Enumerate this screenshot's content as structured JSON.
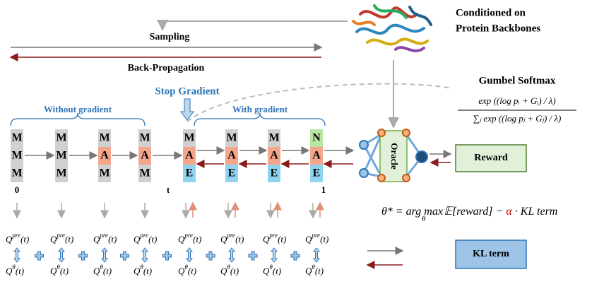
{
  "condition": {
    "line1": "Conditioned on",
    "line2": "Protein Backbones"
  },
  "sampling": "Sampling",
  "backprop": "Back-Propagation",
  "gumbel": {
    "title": "Gumbel Softmax",
    "numerator": "exp ((log pᵢ + Gᵢ) / λ)",
    "denominator": "∑ⱼ exp ((log pⱼ + Gⱼ) / λ)"
  },
  "stop_gradient": "Stop Gradient",
  "without_gradient": "Without gradient",
  "with_gradient": "With gradient",
  "columns": [
    [
      "M",
      "M",
      "M"
    ],
    [
      "M",
      "M",
      "M"
    ],
    [
      "M",
      "A",
      "M"
    ],
    [
      "M",
      "A",
      "M"
    ],
    [
      "M",
      "A",
      "E"
    ],
    [
      "M",
      "A",
      "E"
    ],
    [
      "M",
      "A",
      "E"
    ],
    [
      "N",
      "A",
      "E"
    ]
  ],
  "time_labels": {
    "start": "0",
    "mid": "t",
    "end": "1"
  },
  "oracle": "Oracle",
  "reward": "Reward",
  "objective": {
    "lhs": "θ* = arg max",
    "sub": "θ",
    "mid": " 𝔼[reward] − ",
    "alpha": "α",
    "rhs": " · KL term"
  },
  "q_pre": {
    "base": "Q",
    "sup": "pre",
    "arg": "(t)"
  },
  "q_theta": {
    "base": "Q",
    "sup": "θ",
    "arg": "(t)"
  },
  "kl_term": "KL term"
}
